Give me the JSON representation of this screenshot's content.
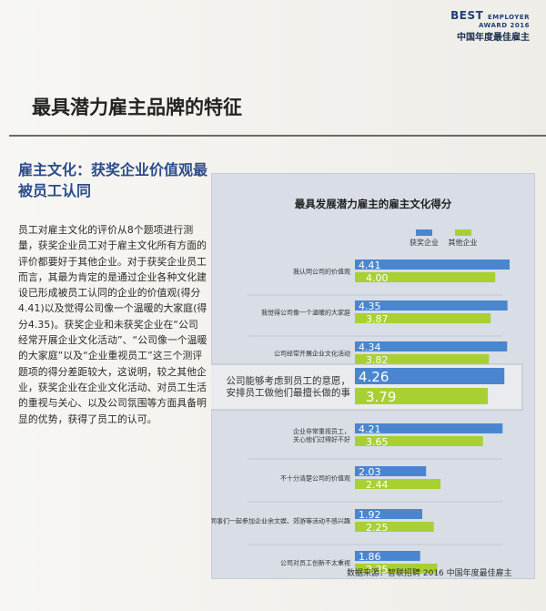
{
  "brand": {
    "best": "BEST",
    "employer": "EMPLOYER",
    "award": "AWARD 2016",
    "cn": "中国年度最佳雇主"
  },
  "page_title": "最具潜力雇主品牌的特征",
  "subtitle": "雇主文化：获奖企业价值观最被员工认同",
  "body_text": "员工对雇主文化的评价从8个题项进行测量，获奖企业员工对于雇主文化所有方面的评价都要好于其他企业。对于获奖企业员工而言，其最为肯定的是通过企业各种文化建设已形成被员工认同的企业的价值观(得分4.41)以及觉得公司像一个温暖的大家庭(得分4.35)。获奖企业和未获奖企业在“公司经常开展企业文化活动”、“公司像一个温暖的大家庭”以及“企业重视员工”这三个测评题项的得分差距较大，这说明，较之其他企业，获奖企业在企业文化活动、对员工生活的重视与关心、以及公司氛围等方面具备明显的优势，获得了员工的认可。",
  "source": "数据来源：智联招聘 2016 中国年度最佳雇主",
  "colors": {
    "awarded": "#4a86cf",
    "other": "#a8d033",
    "panel": "#d8dde6"
  },
  "chart_data": {
    "type": "bar",
    "orientation": "horizontal",
    "title": "最具发展潜力雇主的雇主文化得分",
    "categories": [
      "我认同公司的价值观",
      "我觉得公司像一个温暖的大家庭",
      "公司经常开展企业文化活动",
      "公司能够考虑到员工的意愿，安排员工做他们最擅长做的事",
      "企业非常重视员工，关心他们过得好不好",
      "不十分清楚公司的价值观",
      "我对与同事们一起参加企业余文娱、郊游等活动不感兴趣",
      "公司对员工创新不太重视"
    ],
    "series": [
      {
        "name": "获奖企业",
        "values": [
          4.41,
          4.35,
          4.34,
          4.26,
          4.21,
          2.03,
          1.92,
          1.86
        ],
        "labels": [
          "4.41",
          "4.35",
          "4.34",
          "4.26",
          "4.21",
          "2.03",
          "1.92",
          "1.86"
        ]
      },
      {
        "name": "其他企业",
        "values": [
          4.0,
          3.87,
          3.82,
          3.79,
          3.65,
          2.44,
          2.25,
          2.35
        ],
        "labels": [
          "4.00",
          "3.87",
          "3.82",
          "3.79",
          "3.65",
          "2.44",
          "2.25",
          "2.35"
        ]
      }
    ],
    "highlight_index": 3,
    "xlim": [
      0,
      5
    ],
    "grid": false,
    "legend": "top-right"
  }
}
